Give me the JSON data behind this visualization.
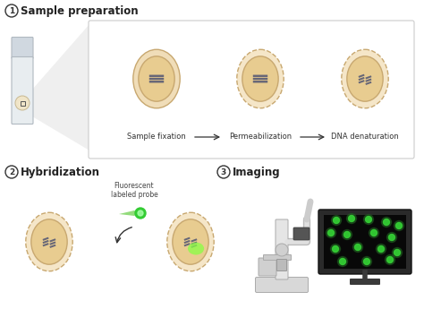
{
  "section1_title": "Sample preparation",
  "section2_title": "Hybridization",
  "section3_title": "Imaging",
  "labels": [
    "Sample fixation",
    "Permeabilization",
    "DNA denaturation"
  ],
  "probe_label": "Fluorescent\nlabeled probe",
  "bg_color": "#ffffff",
  "cell_outer_color": "#f5e6c8",
  "cell_outer_color2": "#f0ddb8",
  "cell_border_solid": "#c8a870",
  "cell_border_dashed": "#c8a870",
  "nucleus_color": "#e8cc90",
  "nucleus_border": "#c8a870",
  "dna_color": "#555566",
  "green_probe_color": "#33cc33",
  "green_glow_color": "#88ff44",
  "arrow_color": "#333333",
  "box_bg": "#ffffff",
  "box_border": "#cccccc",
  "slide_top_color": "#d0d8e0",
  "slide_body_color": "#e8edf0",
  "slide_border": "#b0b8c0",
  "monitor_frame": "#2a2a2a",
  "monitor_bg": "#080808",
  "monitor_stand": "#3a3a3a",
  "green_dot_color": "#33cc33",
  "mic_color": "#e8e8e8",
  "mic_dark": "#aaaaaa"
}
